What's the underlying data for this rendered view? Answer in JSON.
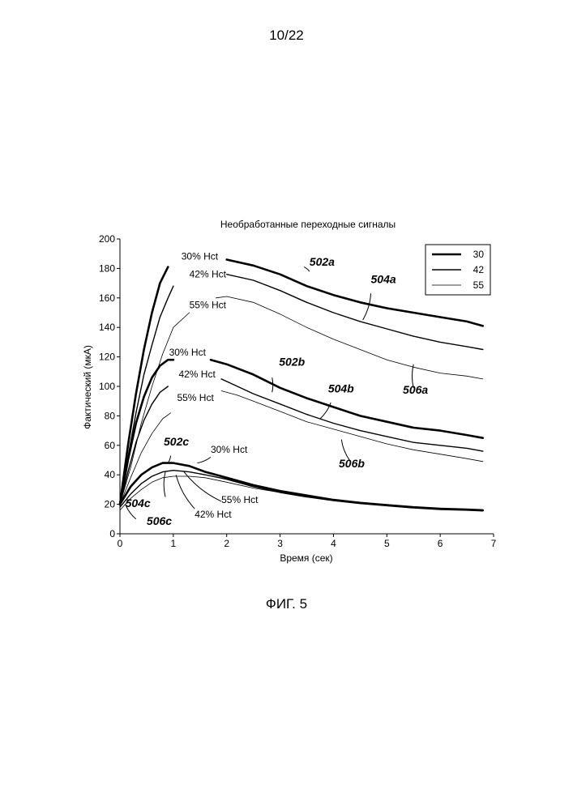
{
  "page": {
    "number": "10/22",
    "caption": "ФИГ. 5"
  },
  "chart_data": {
    "type": "line",
    "title": "Необработанные переходные сигналы",
    "xlabel": "Время (сек)",
    "ylabel": "Фактический  (мкА)",
    "xlim": [
      0,
      7
    ],
    "ylim": [
      0,
      200
    ],
    "xticks": [
      "0",
      "1",
      "2",
      "3",
      "4",
      "5",
      "6",
      "7"
    ],
    "yticks": [
      "0",
      "20",
      "40",
      "60",
      "80",
      "100",
      "120",
      "140",
      "160",
      "180",
      "200"
    ],
    "grid": false,
    "legend_position": "top-right",
    "legend": [
      {
        "label": "30",
        "weight": "thick"
      },
      {
        "label": "42",
        "weight": "medium"
      },
      {
        "label": "55",
        "weight": "thin"
      }
    ],
    "series": [
      {
        "name": "30",
        "group": "a",
        "weight": "thick",
        "segments": [
          [
            [
              0,
              20
            ],
            [
              0.15,
              60
            ],
            [
              0.3,
              95
            ],
            [
              0.45,
              125
            ],
            [
              0.6,
              150
            ],
            [
              0.75,
              170
            ],
            [
              0.9,
              181
            ]
          ],
          [
            [
              2.0,
              186
            ],
            [
              2.5,
              182
            ],
            [
              3.0,
              176
            ],
            [
              3.5,
              168
            ],
            [
              4.0,
              162
            ],
            [
              4.5,
              157
            ],
            [
              5.0,
              153
            ],
            [
              5.5,
              150
            ],
            [
              6.0,
              147
            ],
            [
              6.5,
              144
            ],
            [
              6.8,
              141
            ]
          ]
        ]
      },
      {
        "name": "42",
        "group": "a",
        "weight": "medium",
        "segments": [
          [
            [
              0,
              20
            ],
            [
              0.15,
              52
            ],
            [
              0.3,
              82
            ],
            [
              0.45,
              108
            ],
            [
              0.6,
              128
            ],
            [
              0.75,
              147
            ],
            [
              0.9,
              160
            ],
            [
              1.0,
              168
            ]
          ],
          [
            [
              2.0,
              176
            ],
            [
              2.5,
              172
            ],
            [
              3.0,
              165
            ],
            [
              3.5,
              157
            ],
            [
              4.0,
              150
            ],
            [
              4.5,
              144
            ],
            [
              5.0,
              139
            ],
            [
              5.5,
              134
            ],
            [
              6.0,
              130
            ],
            [
              6.5,
              127
            ],
            [
              6.8,
              125
            ]
          ]
        ]
      },
      {
        "name": "55",
        "group": "a",
        "weight": "thin",
        "segments": [
          [
            [
              0,
              20
            ],
            [
              0.2,
              45
            ],
            [
              0.4,
              75
            ],
            [
              0.6,
              100
            ],
            [
              0.8,
              122
            ],
            [
              1.0,
              140
            ],
            [
              1.3,
              150
            ]
          ],
          [
            [
              1.8,
              160
            ],
            [
              2.0,
              161
            ],
            [
              2.5,
              157
            ],
            [
              3.0,
              149
            ],
            [
              3.5,
              140
            ],
            [
              4.0,
              132
            ],
            [
              4.5,
              125
            ],
            [
              5.0,
              118
            ],
            [
              5.5,
              113
            ],
            [
              6.0,
              109
            ],
            [
              6.5,
              107
            ],
            [
              6.8,
              105
            ]
          ]
        ]
      },
      {
        "name": "30",
        "group": "b",
        "weight": "thick",
        "segments": [
          [
            [
              0,
              20
            ],
            [
              0.15,
              50
            ],
            [
              0.3,
              75
            ],
            [
              0.45,
              93
            ],
            [
              0.6,
              106
            ],
            [
              0.75,
              114
            ],
            [
              0.9,
              118
            ],
            [
              1.0,
              118
            ]
          ],
          [
            [
              1.7,
              118
            ],
            [
              2.0,
              115
            ],
            [
              2.5,
              108
            ],
            [
              3.0,
              99
            ],
            [
              3.5,
              92
            ],
            [
              4.0,
              86
            ],
            [
              4.5,
              80
            ],
            [
              5.0,
              76
            ],
            [
              5.5,
              72
            ],
            [
              6.0,
              70
            ],
            [
              6.5,
              67
            ],
            [
              6.8,
              65
            ]
          ]
        ]
      },
      {
        "name": "42",
        "group": "b",
        "weight": "medium",
        "segments": [
          [
            [
              0,
              20
            ],
            [
              0.15,
              42
            ],
            [
              0.3,
              62
            ],
            [
              0.45,
              77
            ],
            [
              0.6,
              88
            ],
            [
              0.75,
              96
            ],
            [
              0.9,
              100
            ]
          ],
          [
            [
              1.9,
              105
            ],
            [
              2.2,
              100
            ],
            [
              2.5,
              95
            ],
            [
              3.0,
              88
            ],
            [
              3.5,
              81
            ],
            [
              4.0,
              75
            ],
            [
              4.5,
              70
            ],
            [
              5.0,
              66
            ],
            [
              5.5,
              62
            ],
            [
              6.0,
              60
            ],
            [
              6.5,
              58
            ],
            [
              6.8,
              56
            ]
          ]
        ]
      },
      {
        "name": "55",
        "group": "b",
        "weight": "thin",
        "segments": [
          [
            [
              0,
              20
            ],
            [
              0.2,
              38
            ],
            [
              0.4,
              55
            ],
            [
              0.6,
              68
            ],
            [
              0.8,
              78
            ],
            [
              0.95,
              82
            ]
          ],
          [
            [
              1.9,
              97
            ],
            [
              2.2,
              94
            ],
            [
              2.5,
              90
            ],
            [
              3.0,
              83
            ],
            [
              3.5,
              76
            ],
            [
              4.0,
              71
            ],
            [
              4.5,
              66
            ],
            [
              5.0,
              61
            ],
            [
              5.5,
              57
            ],
            [
              6.0,
              54
            ],
            [
              6.5,
              51
            ],
            [
              6.8,
              49
            ]
          ]
        ]
      },
      {
        "name": "30",
        "group": "c",
        "weight": "thick",
        "segments": [
          [
            [
              0,
              20
            ],
            [
              0.2,
              32
            ],
            [
              0.4,
              40
            ],
            [
              0.6,
              45
            ],
            [
              0.8,
              48
            ],
            [
              1.0,
              48
            ],
            [
              1.3,
              46
            ],
            [
              1.6,
              42
            ],
            [
              2.0,
              38
            ],
            [
              2.5,
              33
            ],
            [
              3.0,
              29
            ],
            [
              3.5,
              26
            ],
            [
              4.0,
              23
            ],
            [
              4.5,
              21
            ],
            [
              5.0,
              19.5
            ],
            [
              5.5,
              18
            ],
            [
              6.0,
              17
            ],
            [
              6.5,
              16.5
            ],
            [
              6.8,
              16
            ]
          ]
        ]
      },
      {
        "name": "42",
        "group": "c",
        "weight": "medium",
        "segments": [
          [
            [
              0,
              18
            ],
            [
              0.2,
              27
            ],
            [
              0.4,
              34
            ],
            [
              0.6,
              39
            ],
            [
              0.8,
              42
            ],
            [
              1.0,
              43
            ],
            [
              1.3,
              42
            ],
            [
              1.6,
              40
            ],
            [
              2.0,
              37
            ],
            [
              2.5,
              32
            ],
            [
              3.0,
              28
            ],
            [
              3.5,
              25
            ],
            [
              4.0,
              22.5
            ],
            [
              4.5,
              20.5
            ],
            [
              5.0,
              19
            ],
            [
              5.5,
              17.5
            ],
            [
              6.0,
              16.5
            ],
            [
              6.5,
              16
            ],
            [
              6.8,
              15.5
            ]
          ]
        ]
      },
      {
        "name": "55",
        "group": "c",
        "weight": "thin",
        "segments": [
          [
            [
              0,
              16
            ],
            [
              0.2,
              24
            ],
            [
              0.4,
              30
            ],
            [
              0.6,
              35
            ],
            [
              0.8,
              38
            ],
            [
              1.0,
              39
            ],
            [
              1.3,
              39
            ],
            [
              1.6,
              38
            ],
            [
              2.0,
              35
            ],
            [
              2.5,
              31
            ],
            [
              3.0,
              28
            ],
            [
              3.5,
              25
            ],
            [
              4.0,
              23
            ],
            [
              4.5,
              21
            ],
            [
              5.0,
              19.5
            ],
            [
              5.5,
              18
            ],
            [
              6.0,
              17
            ],
            [
              6.5,
              16.5
            ],
            [
              6.8,
              16
            ]
          ]
        ]
      }
    ],
    "annotations": [
      {
        "text": "30% Hct",
        "style": "plain",
        "x": 1.15,
        "y": 186,
        "anchor": "start"
      },
      {
        "text": "42% Hct",
        "style": "plain",
        "x": 1.3,
        "y": 174,
        "anchor": "start"
      },
      {
        "text": "55% Hct",
        "style": "plain",
        "x": 1.3,
        "y": 153,
        "anchor": "start"
      },
      {
        "text": "30% Hct",
        "style": "plain",
        "x": 0.92,
        "y": 121,
        "anchor": "start"
      },
      {
        "text": "42% Hct",
        "style": "plain",
        "x": 1.1,
        "y": 106,
        "anchor": "start"
      },
      {
        "text": "55% Hct",
        "style": "plain",
        "x": 1.07,
        "y": 90,
        "anchor": "start"
      },
      {
        "text": "30% Hct",
        "style": "plain",
        "x": 1.7,
        "y": 55,
        "anchor": "start"
      },
      {
        "text": "55% Hct",
        "style": "plain",
        "x": 1.9,
        "y": 21,
        "anchor": "start"
      },
      {
        "text": "42% Hct",
        "style": "plain",
        "x": 1.4,
        "y": 11,
        "anchor": "start"
      },
      {
        "text": "502a",
        "style": "bold",
        "x": 3.55,
        "y": 182,
        "anchor": "start"
      },
      {
        "text": "504a",
        "style": "bold",
        "x": 4.7,
        "y": 170,
        "anchor": "start"
      },
      {
        "text": "506a",
        "style": "bold",
        "x": 5.3,
        "y": 95,
        "anchor": "start"
      },
      {
        "text": "502b",
        "style": "bold",
        "x": 2.98,
        "y": 114,
        "anchor": "start"
      },
      {
        "text": "504b",
        "style": "bold",
        "x": 3.9,
        "y": 96,
        "anchor": "start"
      },
      {
        "text": "506b",
        "style": "bold",
        "x": 4.1,
        "y": 45,
        "anchor": "start"
      },
      {
        "text": "502c",
        "style": "bold",
        "x": 0.82,
        "y": 60,
        "anchor": "start"
      },
      {
        "text": "504c",
        "style": "bold",
        "x": 0.1,
        "y": 18,
        "anchor": "start"
      },
      {
        "text": "506c",
        "style": "bold",
        "x": 0.5,
        "y": 6,
        "anchor": "start"
      }
    ],
    "leaders": [
      {
        "from": [
          3.45,
          181
        ],
        "to": [
          3.55,
          178
        ]
      },
      {
        "from": [
          4.7,
          163
        ],
        "to": [
          4.55,
          145
        ]
      },
      {
        "from": [
          5.5,
          99
        ],
        "to": [
          5.5,
          115
        ]
      },
      {
        "from": [
          2.85,
          106
        ],
        "to": [
          2.85,
          96
        ]
      },
      {
        "from": [
          3.95,
          89
        ],
        "to": [
          3.75,
          78
        ]
      },
      {
        "from": [
          4.3,
          50
        ],
        "to": [
          4.15,
          64
        ]
      },
      {
        "from": [
          1.7,
          52
        ],
        "to": [
          1.45,
          48
        ]
      },
      {
        "from": [
          1.9,
          22
        ],
        "to": [
          1.2,
          42
        ]
      },
      {
        "from": [
          1.4,
          17
        ],
        "to": [
          1.05,
          40
        ]
      },
      {
        "from": [
          0.95,
          53
        ],
        "to": [
          0.9,
          48
        ]
      },
      {
        "from": [
          0.85,
          25
        ],
        "to": [
          0.85,
          42
        ]
      },
      {
        "from": [
          0.3,
          10
        ],
        "to": [
          0.1,
          20
        ]
      }
    ]
  }
}
